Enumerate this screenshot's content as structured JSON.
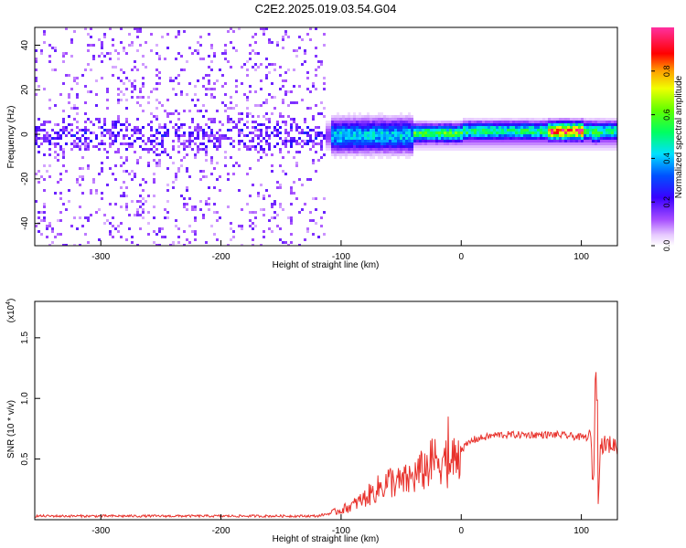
{
  "title": "C2E2.2025.019.03.54.G04",
  "chart_data": [
    {
      "type": "heatmap",
      "xlabel": "Height of straight line (km)",
      "ylabel": "Frequency (Hz)",
      "xlim": [
        -355,
        130
      ],
      "ylim": [
        -50,
        48
      ],
      "x_ticks": [
        -300,
        -200,
        -100,
        0,
        100
      ],
      "y_ticks": [
        -40,
        -20,
        0,
        20,
        40
      ],
      "colorbar": {
        "label": "Normalized spectral amplitude",
        "ticks": [
          0.0,
          0.2,
          0.4,
          0.6,
          0.8
        ],
        "range": [
          0,
          1
        ],
        "colormap": "rainbow (white-violet-blue-cyan-green-yellow-red-magenta)"
      },
      "features": [
        {
          "x_range": [
            -355,
            -115
          ],
          "description": "noise",
          "amplitude": 0.05
        },
        {
          "x_range": [
            -110,
            -40
          ],
          "freq_center": 0,
          "amplitude": 0.45
        },
        {
          "x_range": [
            -40,
            0
          ],
          "freq_center": 1,
          "amplitude": 0.6
        },
        {
          "x_range": [
            0,
            130
          ],
          "freq_center": 2,
          "amplitude": 0.55
        },
        {
          "x_range": [
            70,
            100
          ],
          "freq_center": 2,
          "amplitude": 0.95
        },
        {
          "x_range": [
            108,
            115
          ],
          "freq_center": 1,
          "amplitude": 0.6
        }
      ],
      "grid": false
    },
    {
      "type": "line",
      "xlabel": "Height of straight line (km)",
      "ylabel": "SNR (10 * v/v)",
      "y_multiplier": "(x10",
      "y_multiplier_exp": "4",
      "y_multiplier_close": ")",
      "xlim": [
        -355,
        130
      ],
      "ylim": [
        0,
        1.8
      ],
      "x_ticks": [
        -300,
        -200,
        -100,
        0,
        100
      ],
      "y_ticks": [
        0.5,
        1.0,
        1.5
      ],
      "y_tick_labels": [
        "0.5",
        "1.0",
        "1.5"
      ],
      "series": [
        {
          "color": "#e8322c",
          "x": [
            -355,
            -300,
            -250,
            -200,
            -150,
            -120,
            -110,
            -100,
            -90,
            -80,
            -70,
            -60,
            -50,
            -40,
            -30,
            -20,
            -15,
            -10,
            -5,
            0,
            5,
            10,
            20,
            30,
            40,
            50,
            60,
            70,
            80,
            90,
            100,
            105,
            108,
            110,
            112,
            114,
            116,
            120,
            125,
            130
          ],
          "y": [
            0.03,
            0.03,
            0.03,
            0.03,
            0.03,
            0.03,
            0.05,
            0.08,
            0.12,
            0.18,
            0.25,
            0.32,
            0.3,
            0.35,
            0.42,
            0.5,
            0.52,
            0.45,
            0.5,
            0.58,
            0.62,
            0.66,
            0.68,
            0.7,
            0.7,
            0.7,
            0.7,
            0.7,
            0.7,
            0.69,
            0.68,
            0.68,
            0.67,
            0.2,
            1.4,
            0.2,
            0.62,
            0.62,
            0.62,
            0.61
          ]
        }
      ],
      "grid": false
    }
  ],
  "x_tick_labels": [
    "-300",
    "-200",
    "-100",
    "0",
    "100"
  ],
  "heat_y_tick_labels": [
    "-40",
    "-20",
    "0",
    "20",
    "40"
  ],
  "colorbar_tick_labels": [
    "0.0",
    "0.2",
    "0.4",
    "0.6",
    "0.8"
  ]
}
